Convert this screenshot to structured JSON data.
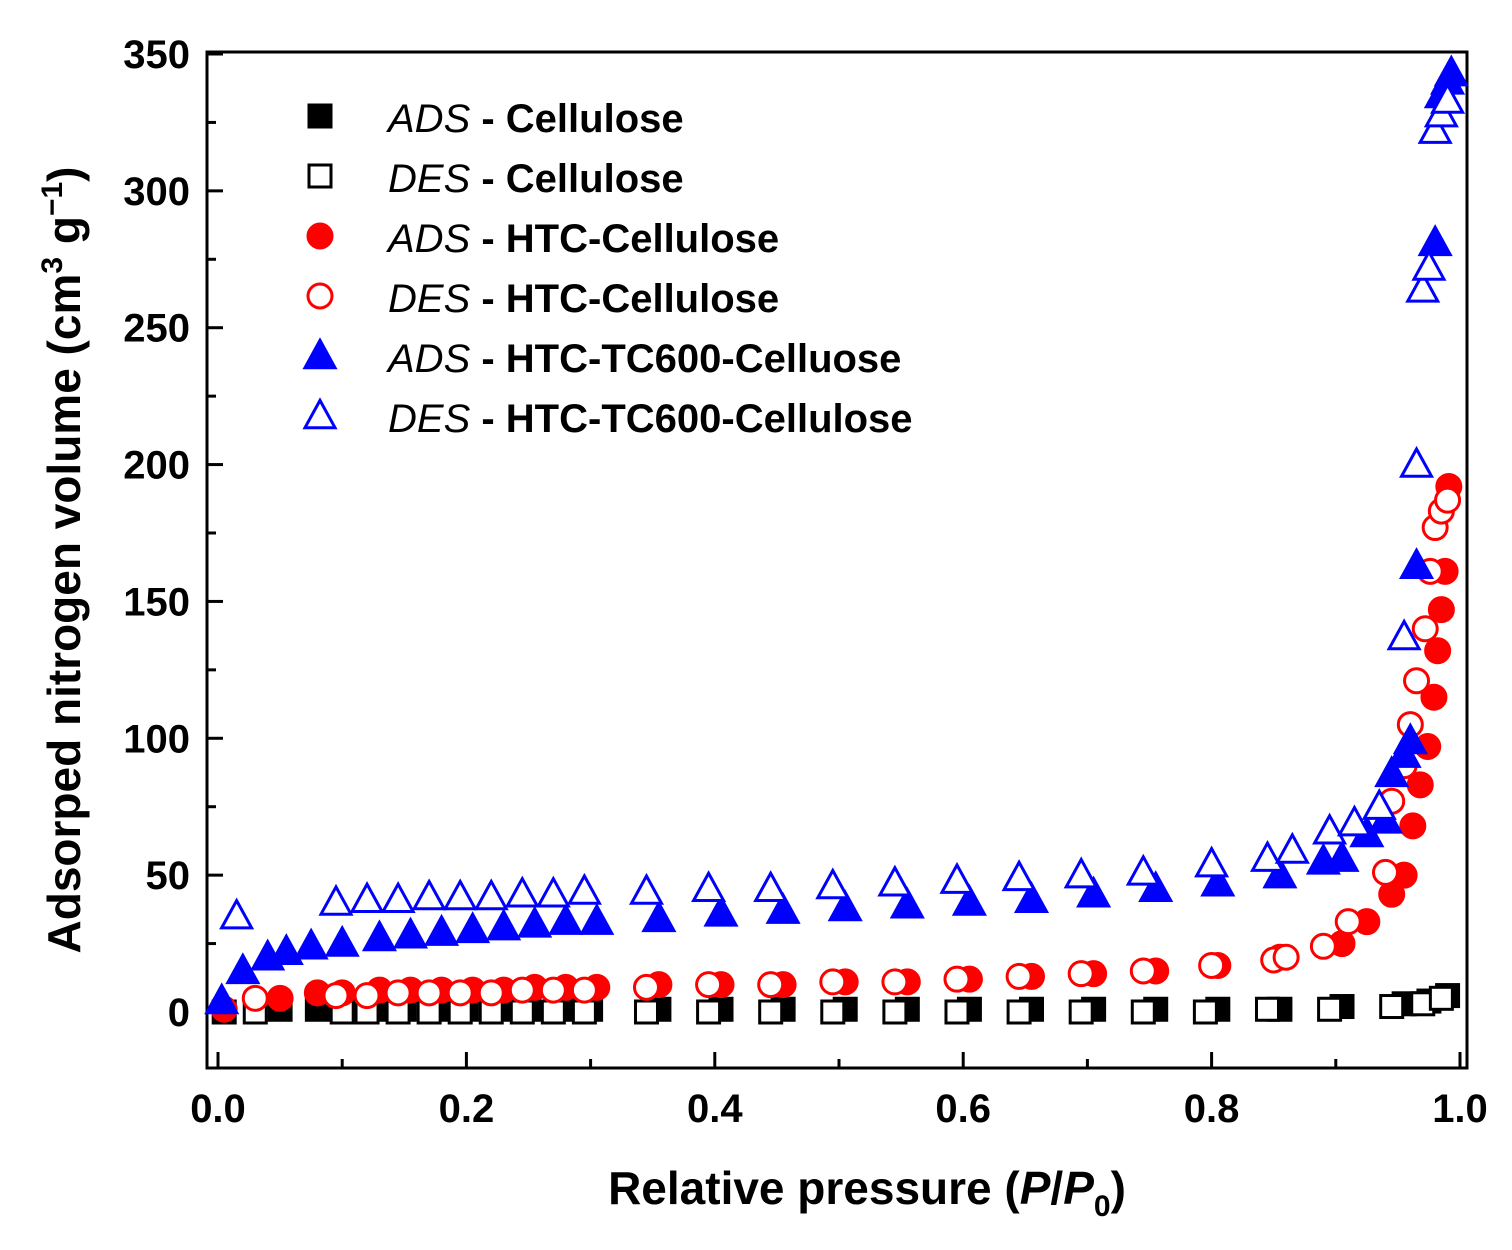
{
  "chart_data": {
    "type": "scatter",
    "title": "",
    "xlabel": {
      "main": "Relative pressure (",
      "p": "P",
      "slash": "/",
      "p0": "P",
      "sub": "0",
      "close": ")"
    },
    "ylabel": {
      "main": "Adsorped nitrogen volume (cm",
      "sup3": "3",
      "mid": " g",
      "supm1": "−1",
      "close": ")"
    },
    "xlim": [
      0.0,
      1.0
    ],
    "ylim": [
      -20,
      350
    ],
    "xticks": [
      0.0,
      0.2,
      0.4,
      0.6,
      0.8,
      1.0
    ],
    "xtick_labels": [
      "0.0",
      "0.2",
      "0.4",
      "0.6",
      "0.8",
      "1.0"
    ],
    "yticks": [
      0,
      50,
      100,
      150,
      200,
      250,
      300,
      350
    ],
    "ytick_labels": [
      "0",
      "50",
      "100",
      "150",
      "200",
      "250",
      "300",
      "350"
    ],
    "legend_position": "top-left",
    "series": [
      {
        "name": "ADS - Cellulose",
        "legend_prefix": "ADS",
        "legend_sep": " - ",
        "legend_suffix": "Cellulose",
        "marker": "square",
        "filled": true,
        "color": "#000000",
        "x": [
          0.005,
          0.05,
          0.08,
          0.1,
          0.13,
          0.15,
          0.18,
          0.2,
          0.23,
          0.25,
          0.28,
          0.3,
          0.355,
          0.405,
          0.455,
          0.505,
          0.555,
          0.605,
          0.655,
          0.705,
          0.755,
          0.805,
          0.855,
          0.905,
          0.955,
          0.975,
          0.99
        ],
        "y": [
          0,
          1,
          1,
          1,
          1,
          1,
          1,
          1,
          1,
          1,
          1,
          1,
          1,
          1,
          1,
          1,
          1,
          1,
          1,
          1,
          1,
          1,
          1,
          2,
          3,
          4,
          6
        ]
      },
      {
        "name": "DES - Cellulose",
        "legend_prefix": "DES",
        "legend_sep": " - ",
        "legend_suffix": "Cellulose",
        "marker": "square",
        "filled": false,
        "color": "#000000",
        "x": [
          0.03,
          0.1,
          0.12,
          0.145,
          0.17,
          0.195,
          0.22,
          0.245,
          0.27,
          0.295,
          0.345,
          0.395,
          0.445,
          0.495,
          0.545,
          0.595,
          0.645,
          0.695,
          0.745,
          0.795,
          0.845,
          0.895,
          0.945,
          0.97,
          0.985
        ],
        "y": [
          0,
          0,
          0,
          0,
          0,
          0,
          0,
          0,
          0,
          0,
          0,
          0,
          0,
          0,
          0,
          0,
          0,
          0,
          0,
          0,
          1,
          1,
          2,
          3,
          5
        ]
      },
      {
        "name": "ADS - HTC-Cellulose",
        "legend_prefix": "ADS",
        "legend_sep": " - ",
        "legend_suffix": "HTC-Cellulose",
        "marker": "circle",
        "filled": true,
        "color": "#ff0000",
        "x": [
          0.005,
          0.05,
          0.08,
          0.1,
          0.13,
          0.155,
          0.18,
          0.205,
          0.23,
          0.255,
          0.28,
          0.305,
          0.355,
          0.405,
          0.455,
          0.505,
          0.555,
          0.605,
          0.655,
          0.705,
          0.755,
          0.805,
          0.855,
          0.905,
          0.925,
          0.945,
          0.955,
          0.962,
          0.968,
          0.974,
          0.979,
          0.982,
          0.985,
          0.988,
          0.991
        ],
        "y": [
          1,
          5,
          7,
          7,
          8,
          8,
          8,
          8,
          8,
          9,
          9,
          9,
          10,
          10,
          10,
          11,
          11,
          12,
          13,
          14,
          15,
          17,
          20,
          25,
          33,
          43,
          50,
          68,
          83,
          97,
          115,
          132,
          147,
          161,
          192
        ]
      },
      {
        "name": "DES - HTC-Cellulose",
        "legend_prefix": "DES",
        "legend_sep": " - ",
        "legend_suffix": "HTC-Cellulose",
        "marker": "circle",
        "filled": false,
        "color": "#ff0000",
        "x": [
          0.03,
          0.095,
          0.12,
          0.145,
          0.17,
          0.195,
          0.22,
          0.245,
          0.27,
          0.295,
          0.345,
          0.395,
          0.445,
          0.495,
          0.545,
          0.595,
          0.645,
          0.695,
          0.745,
          0.8,
          0.85,
          0.86,
          0.89,
          0.91,
          0.94,
          0.945,
          0.955,
          0.96,
          0.965,
          0.972,
          0.976,
          0.98,
          0.985,
          0.99
        ],
        "y": [
          5,
          6,
          6,
          7,
          7,
          7,
          7,
          8,
          8,
          8,
          9,
          10,
          10,
          11,
          11,
          12,
          13,
          14,
          15,
          17,
          19,
          20,
          24,
          33,
          51,
          77,
          90,
          105,
          121,
          140,
          161,
          177,
          183,
          187
        ]
      },
      {
        "name": "ADS - HTC-TC600-Celluose",
        "legend_prefix": "ADS",
        "legend_sep": " - ",
        "legend_suffix": "HTC-TC600-Celluose",
        "marker": "triangle",
        "filled": true,
        "color": "#0000ff",
        "x": [
          0.003,
          0.02,
          0.04,
          0.055,
          0.075,
          0.1,
          0.13,
          0.155,
          0.18,
          0.205,
          0.23,
          0.255,
          0.28,
          0.305,
          0.355,
          0.405,
          0.455,
          0.505,
          0.555,
          0.605,
          0.655,
          0.705,
          0.755,
          0.805,
          0.855,
          0.89,
          0.905,
          0.925,
          0.94,
          0.945,
          0.955,
          0.96,
          0.965,
          0.98,
          0.985,
          0.99,
          0.993
        ],
        "y": [
          4,
          15,
          20,
          22,
          24,
          25,
          27,
          28,
          29,
          30,
          31,
          32,
          33,
          33,
          34,
          36,
          37,
          38,
          39,
          40,
          41,
          43,
          45,
          47,
          50,
          55,
          56,
          65,
          70,
          87,
          94,
          99,
          163,
          281,
          335,
          340,
          343
        ]
      },
      {
        "name": "DES - HTC-TC600-Cellulose",
        "legend_prefix": "DES",
        "legend_sep": " - ",
        "legend_suffix": "HTC-TC600-Cellulose",
        "marker": "triangle",
        "filled": false,
        "color": "#0000ff",
        "x": [
          0.015,
          0.095,
          0.12,
          0.145,
          0.17,
          0.195,
          0.22,
          0.245,
          0.27,
          0.295,
          0.345,
          0.395,
          0.445,
          0.495,
          0.545,
          0.595,
          0.645,
          0.695,
          0.745,
          0.8,
          0.845,
          0.865,
          0.895,
          0.915,
          0.935,
          0.955,
          0.965,
          0.97,
          0.975,
          0.98,
          0.985,
          0.99
        ],
        "y": [
          35,
          40,
          41,
          41,
          42,
          42,
          42,
          43,
          43,
          44,
          44,
          45,
          45,
          46,
          47,
          48,
          49,
          50,
          51,
          54,
          56,
          59,
          66,
          69,
          75,
          137,
          200,
          264,
          272,
          322,
          328,
          333
        ]
      }
    ]
  }
}
